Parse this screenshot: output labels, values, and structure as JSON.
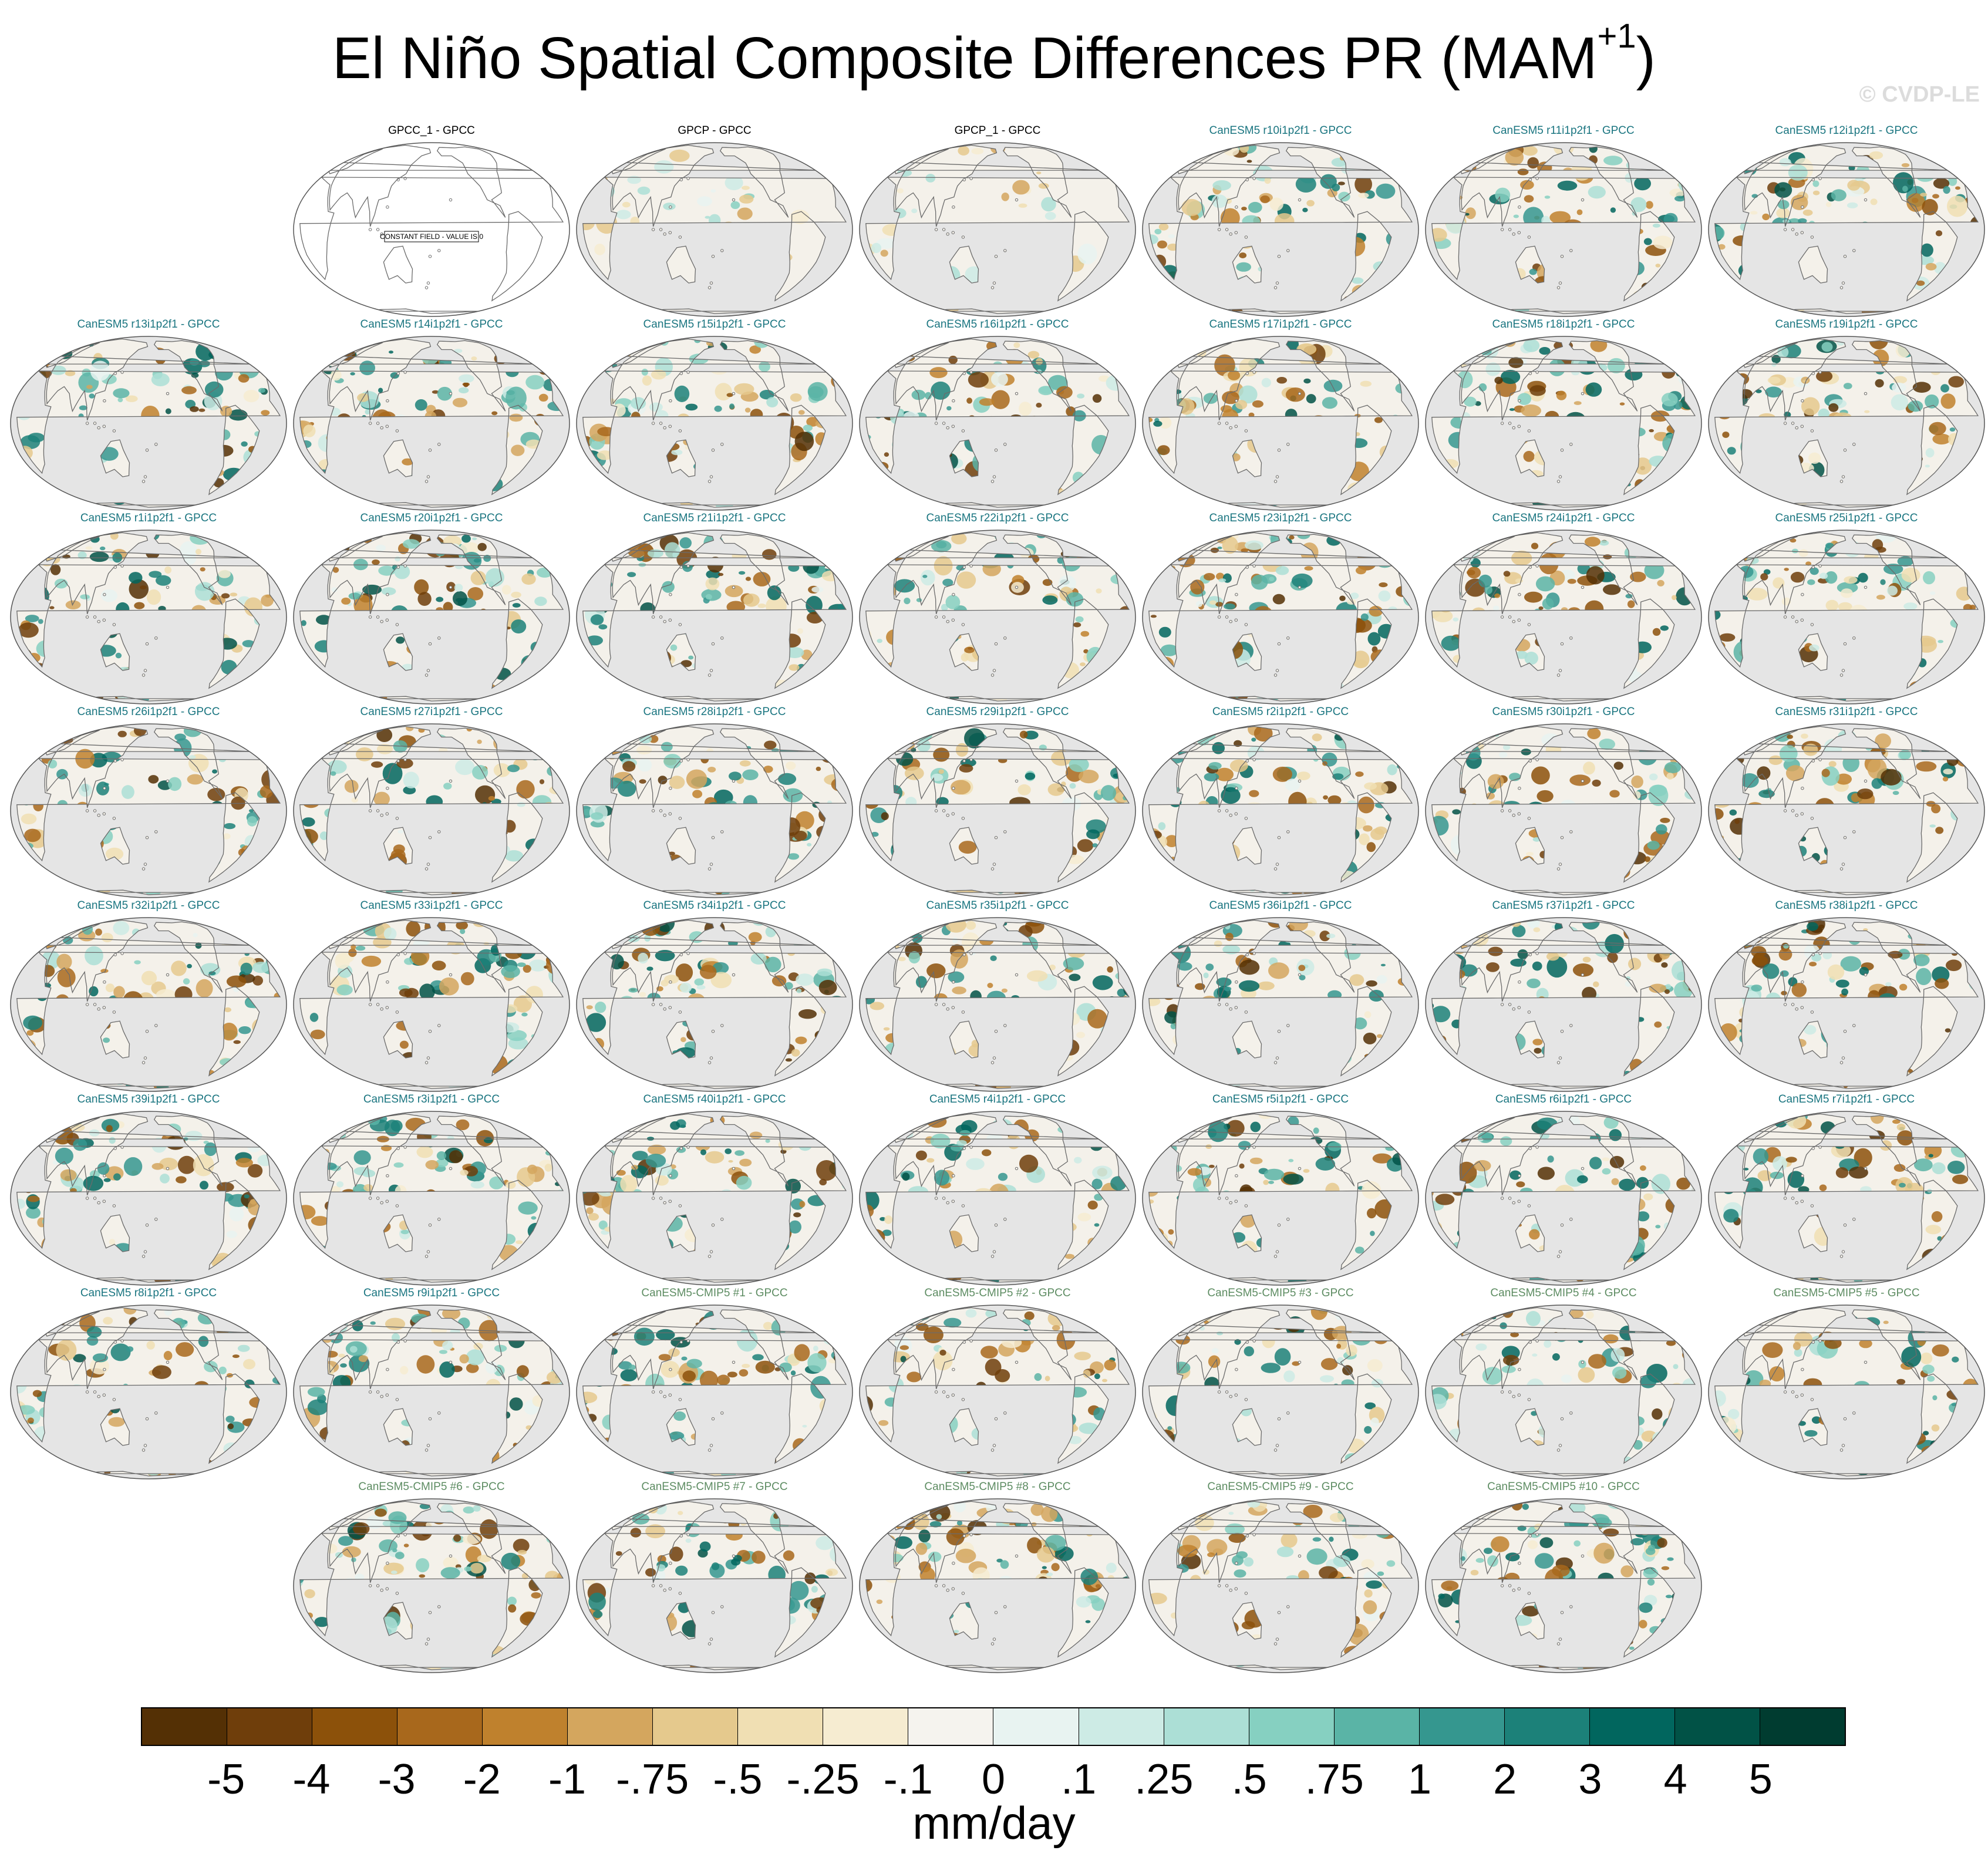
{
  "title": "El Niño Spatial Composite Differences PR (MAM",
  "title_sup": "+1",
  "title_close": ")",
  "watermark": "© CVDP-LE",
  "constant_field_text": "CONSTANT FIELD - VALUE IS 0",
  "units": "mm/day",
  "colorbar": {
    "labels": [
      "-5",
      "-4",
      "-3",
      "-2",
      "-1",
      "-.75",
      "-.5",
      "-.25",
      "-.1",
      "0",
      ".1",
      ".25",
      ".5",
      ".75",
      "1",
      "2",
      "3",
      "4",
      "5"
    ],
    "colors": [
      "#543005",
      "#6f3e0b",
      "#8c510a",
      "#a8681c",
      "#bf812d",
      "#d4a65e",
      "#e5c98d",
      "#f0dfb3",
      "#f6ecd1",
      "#f5f3ee",
      "#e8f3f1",
      "#cdebe5",
      "#acdfd6",
      "#86d0c1",
      "#5ab4a6",
      "#35978f",
      "#1c8179",
      "#01665e",
      "#015246",
      "#003c30"
    ]
  },
  "panels": [
    {
      "title": "GPCC_1 - GPCC",
      "kind": "constant"
    },
    {
      "title": "GPCP - GPCC",
      "kind": "obs"
    },
    {
      "title": "GPCP_1 - GPCC",
      "kind": "obs"
    },
    {
      "title": "CanESM5 r10i1p2f1 - GPCC",
      "kind": "mem"
    },
    {
      "title": "CanESM5 r11i1p2f1 - GPCC",
      "kind": "mem"
    },
    {
      "title": "CanESM5 r12i1p2f1 - GPCC",
      "kind": "mem"
    },
    {
      "title": "CanESM5 r13i1p2f1 - GPCC",
      "kind": "mem"
    },
    {
      "title": "CanESM5 r14i1p2f1 - GPCC",
      "kind": "mem"
    },
    {
      "title": "CanESM5 r15i1p2f1 - GPCC",
      "kind": "mem"
    },
    {
      "title": "CanESM5 r16i1p2f1 - GPCC",
      "kind": "mem"
    },
    {
      "title": "CanESM5 r17i1p2f1 - GPCC",
      "kind": "mem"
    },
    {
      "title": "CanESM5 r18i1p2f1 - GPCC",
      "kind": "mem"
    },
    {
      "title": "CanESM5 r19i1p2f1 - GPCC",
      "kind": "mem"
    },
    {
      "title": "CanESM5 r1i1p2f1 - GPCC",
      "kind": "mem"
    },
    {
      "title": "CanESM5 r20i1p2f1 - GPCC",
      "kind": "mem"
    },
    {
      "title": "CanESM5 r21i1p2f1 - GPCC",
      "kind": "mem"
    },
    {
      "title": "CanESM5 r22i1p2f1 - GPCC",
      "kind": "mem"
    },
    {
      "title": "CanESM5 r23i1p2f1 - GPCC",
      "kind": "mem"
    },
    {
      "title": "CanESM5 r24i1p2f1 - GPCC",
      "kind": "mem"
    },
    {
      "title": "CanESM5 r25i1p2f1 - GPCC",
      "kind": "mem"
    },
    {
      "title": "CanESM5 r26i1p2f1 - GPCC",
      "kind": "mem"
    },
    {
      "title": "CanESM5 r27i1p2f1 - GPCC",
      "kind": "mem"
    },
    {
      "title": "CanESM5 r28i1p2f1 - GPCC",
      "kind": "mem"
    },
    {
      "title": "CanESM5 r29i1p2f1 - GPCC",
      "kind": "mem"
    },
    {
      "title": "CanESM5 r2i1p2f1 - GPCC",
      "kind": "mem"
    },
    {
      "title": "CanESM5 r30i1p2f1 - GPCC",
      "kind": "mem"
    },
    {
      "title": "CanESM5 r31i1p2f1 - GPCC",
      "kind": "mem"
    },
    {
      "title": "CanESM5 r32i1p2f1 - GPCC",
      "kind": "mem"
    },
    {
      "title": "CanESM5 r33i1p2f1 - GPCC",
      "kind": "mem"
    },
    {
      "title": "CanESM5 r34i1p2f1 - GPCC",
      "kind": "mem"
    },
    {
      "title": "CanESM5 r35i1p2f1 - GPCC",
      "kind": "mem"
    },
    {
      "title": "CanESM5 r36i1p2f1 - GPCC",
      "kind": "mem"
    },
    {
      "title": "CanESM5 r37i1p2f1 - GPCC",
      "kind": "mem"
    },
    {
      "title": "CanESM5 r38i1p2f1 - GPCC",
      "kind": "mem"
    },
    {
      "title": "CanESM5 r39i1p2f1 - GPCC",
      "kind": "mem"
    },
    {
      "title": "CanESM5 r3i1p2f1 - GPCC",
      "kind": "mem"
    },
    {
      "title": "CanESM5 r40i1p2f1 - GPCC",
      "kind": "mem"
    },
    {
      "title": "CanESM5 r4i1p2f1 - GPCC",
      "kind": "mem"
    },
    {
      "title": "CanESM5 r5i1p2f1 - GPCC",
      "kind": "mem"
    },
    {
      "title": "CanESM5 r6i1p2f1 - GPCC",
      "kind": "mem"
    },
    {
      "title": "CanESM5 r7i1p2f1 - GPCC",
      "kind": "mem"
    },
    {
      "title": "CanESM5 r8i1p2f1 - GPCC",
      "kind": "mem"
    },
    {
      "title": "CanESM5 r9i1p2f1 - GPCC",
      "kind": "mem"
    },
    {
      "title": "CanESM5-CMIP5 #1 - GPCC",
      "kind": "cmip"
    },
    {
      "title": "CanESM5-CMIP5 #2 - GPCC",
      "kind": "cmip"
    },
    {
      "title": "CanESM5-CMIP5 #3 - GPCC",
      "kind": "cmip"
    },
    {
      "title": "CanESM5-CMIP5 #4 - GPCC",
      "kind": "cmip"
    },
    {
      "title": "CanESM5-CMIP5 #5 - GPCC",
      "kind": "cmip"
    },
    {
      "title": "CanESM5-CMIP5 #6 - GPCC",
      "kind": "cmip"
    },
    {
      "title": "CanESM5-CMIP5 #7 - GPCC",
      "kind": "cmip"
    },
    {
      "title": "CanESM5-CMIP5 #8 - GPCC",
      "kind": "cmip"
    },
    {
      "title": "CanESM5-CMIP5 #9 - GPCC",
      "kind": "cmip"
    },
    {
      "title": "CanESM5-CMIP5 #10 - GPCC",
      "kind": "cmip"
    }
  ]
}
